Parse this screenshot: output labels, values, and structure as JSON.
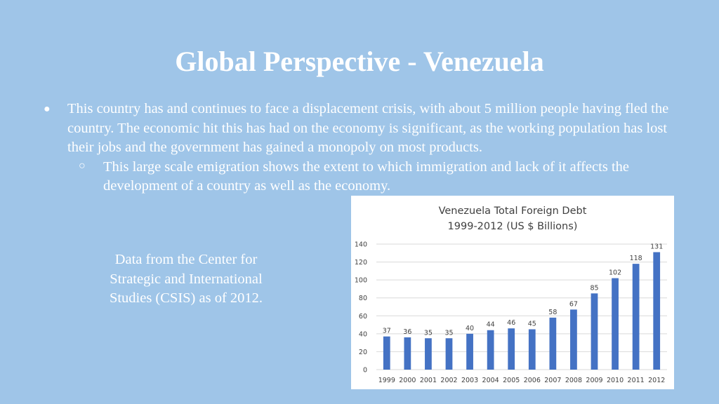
{
  "slide": {
    "title": "Global Perspective - Venezuela",
    "bullets": [
      {
        "text": "This country has and continues to face a displacement crisis, with about 5 million people having fled the country. The economic hit this has had on the economy is significant, as the working population has lost their jobs and the government has gained a monopoly on most products.",
        "sub_bullets": [
          "This large scale emigration shows the extent to which immigration and lack of it affects the development of a country as well as the economy."
        ]
      }
    ],
    "source_note": "Data from the Center for Strategic and International Studies (CSIS) as of 2012."
  },
  "chart_data": {
    "type": "bar",
    "title_lines": [
      "Venezuela Total Foreign Debt",
      "1999-2012 (US $ Billions)"
    ],
    "categories": [
      "1999",
      "2000",
      "2001",
      "2002",
      "2003",
      "2004",
      "2005",
      "2006",
      "2007",
      "2008",
      "2009",
      "2010",
      "2011",
      "2012"
    ],
    "values": [
      37,
      36,
      35,
      35,
      40,
      44,
      46,
      45,
      58,
      67,
      85,
      102,
      118,
      131
    ],
    "ylim": [
      0,
      140
    ],
    "yticks": [
      0,
      20,
      40,
      60,
      80,
      100,
      120,
      140
    ],
    "grid": true,
    "legend": "none",
    "data_labels": true,
    "bar_color": "#4472c4",
    "grid_color": "#d9d9d9"
  }
}
